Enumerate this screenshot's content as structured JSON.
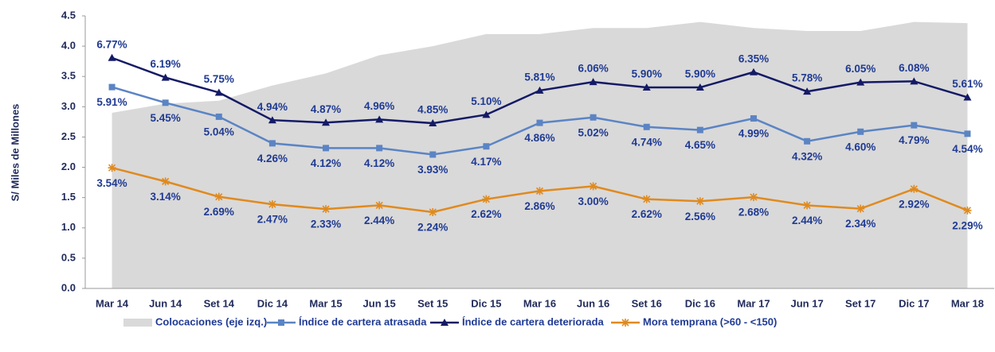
{
  "chart_data": {
    "type": "line",
    "ylabel": "S/  Miles de Millones",
    "categories": [
      "Mar 14",
      "Jun 14",
      "Set 14",
      "Dic 14",
      "Mar 15",
      "Jun 15",
      "Set 15",
      "Dic 15",
      "Mar 16",
      "Jun 16",
      "Set 16",
      "Dic 16",
      "Mar 17",
      "Jun 17",
      "Set 17",
      "Dic 17",
      "Mar 18"
    ],
    "ylim": [
      0,
      4.5
    ],
    "yticks": [
      {
        "value": 0,
        "label": "0.0"
      },
      0.5,
      {
        "value": 1,
        "label": "1.0"
      },
      1.5,
      {
        "value": 2,
        "label": "2.0"
      },
      2.5,
      {
        "value": 3,
        "label": "3.0"
      },
      3.5,
      {
        "value": 4,
        "label": "4.0"
      },
      4.5
    ],
    "y2lim": [
      0,
      8
    ],
    "grid": false,
    "legend": "bottom",
    "series": [
      {
        "name": "Colocaciones (eje izq.)",
        "kind": "area",
        "color": "#d9d9d9",
        "values": [
          2.9,
          3.05,
          3.1,
          3.35,
          3.55,
          3.85,
          4.0,
          4.2,
          4.2,
          4.3,
          4.3,
          4.4,
          4.3,
          4.25,
          4.25,
          4.4,
          4.38
        ]
      },
      {
        "name": "Índice de cartera atrasada",
        "kind": "line",
        "marker": "square",
        "color": "#5b84c4",
        "axis": "y2",
        "label_pos": "below",
        "values": [
          5.91,
          5.45,
          5.04,
          4.26,
          4.12,
          4.12,
          3.93,
          4.17,
          4.86,
          5.02,
          4.74,
          4.65,
          4.99,
          4.32,
          4.6,
          4.79,
          4.54
        ],
        "value_labels": [
          "5.91%",
          "5.45%",
          "5.04%",
          "4.26%",
          "4.12%",
          "4.12%",
          "3.93%",
          "4.17%",
          "4.86%",
          "5.02%",
          "4.74%",
          "4.65%",
          "4.99%",
          "4.32%",
          "4.60%",
          "4.79%",
          "4.54%"
        ]
      },
      {
        "name": "Índice de cartera deteriorada",
        "kind": "line",
        "marker": "triangle",
        "color": "#141a66",
        "axis": "y2",
        "label_pos": "above",
        "values": [
          6.77,
          6.19,
          5.75,
          4.94,
          4.87,
          4.96,
          4.85,
          5.1,
          5.81,
          6.06,
          5.9,
          5.9,
          6.35,
          5.78,
          6.05,
          6.08,
          5.61
        ],
        "value_labels": [
          "6.77%",
          "6.19%",
          "5.75%",
          "4.94%",
          "4.87%",
          "4.96%",
          "4.85%",
          "5.10%",
          "5.81%",
          "6.06%",
          "5.90%",
          "5.90%",
          "6.35%",
          "5.78%",
          "6.05%",
          "6.08%",
          "5.61%"
        ]
      },
      {
        "name": "Mora temprana (>60 - <150)",
        "kind": "line",
        "marker": "star",
        "color": "#e08a1e",
        "axis": "y2",
        "label_pos": "below",
        "values": [
          3.54,
          3.14,
          2.69,
          2.47,
          2.33,
          2.44,
          2.24,
          2.62,
          2.86,
          3.0,
          2.62,
          2.56,
          2.68,
          2.44,
          2.34,
          2.92,
          2.29
        ],
        "value_labels": [
          "3.54%",
          "3.14%",
          "2.69%",
          "2.47%",
          "2.33%",
          "2.44%",
          "2.24%",
          "2.62%",
          "2.86%",
          "3.00%",
          "2.62%",
          "2.56%",
          "2.68%",
          "2.44%",
          "2.34%",
          "2.92%",
          "2.29%"
        ]
      }
    ]
  }
}
